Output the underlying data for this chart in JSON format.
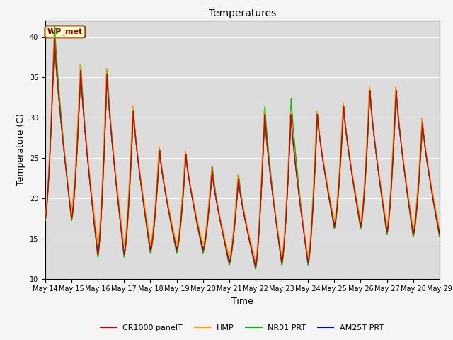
{
  "title": "Temperatures",
  "xlabel": "Time",
  "ylabel": "Temperature (C)",
  "ylim": [
    10,
    42
  ],
  "xlim": [
    0,
    15
  ],
  "plot_bg": "#dcdcdc",
  "fig_bg": "#f5f5f5",
  "annotation_text": "WP_met",
  "annotation_box_color": "#ffffcc",
  "annotation_box_edge": "#8B4513",
  "tick_labels": [
    "May 14",
    "May 15",
    "May 16",
    "May 17",
    "May 18",
    "May 19",
    "May 20",
    "May 21",
    "May 22",
    "May 23",
    "May 24",
    "May 25",
    "May 26",
    "May 27",
    "May 28",
    "May 29"
  ],
  "yticks": [
    10,
    15,
    20,
    25,
    30,
    35,
    40
  ],
  "series_colors": {
    "CR1000 panelT": "#cc0000",
    "HMP": "#ff9900",
    "NR01 PRT": "#00bb00",
    "AM25T PRT": "#0000cc"
  },
  "series_lw": 1.0,
  "day_data": {
    "peaks": [
      40.0,
      36.0,
      35.5,
      31.0,
      26.0,
      25.5,
      23.5,
      22.5,
      30.5,
      30.5,
      30.5,
      31.5,
      33.5,
      33.5,
      29.5
    ],
    "troughs": [
      17.5,
      13.0,
      13.0,
      13.5,
      13.5,
      13.5,
      12.0,
      11.5,
      12.0,
      12.0,
      16.5,
      16.5,
      15.8,
      15.5,
      15.5
    ],
    "peak_pos": [
      0.35,
      0.35,
      0.35,
      0.35,
      0.35,
      0.35,
      0.35,
      0.35,
      0.35,
      0.35,
      0.35,
      0.35,
      0.35,
      0.35,
      0.35
    ],
    "trough_pos": [
      0.85,
      0.85,
      0.85,
      0.85,
      0.85,
      0.85,
      0.85,
      0.85,
      0.85,
      0.85,
      0.85,
      0.85,
      0.85,
      0.85,
      0.85
    ]
  },
  "hmp_offsets": [
    1.0,
    2.5,
    2.5,
    2.0,
    1.5,
    1.5,
    1.5,
    1.5,
    1.5,
    1.5,
    1.5,
    1.5,
    1.5,
    1.5,
    1.5
  ],
  "nr01_offsets": [
    1.5,
    0.5,
    0.5,
    0.0,
    0.0,
    0.0,
    0.5,
    0.5,
    1.0,
    2.0,
    0.0,
    0.0,
    0.0,
    0.0,
    0.0
  ]
}
